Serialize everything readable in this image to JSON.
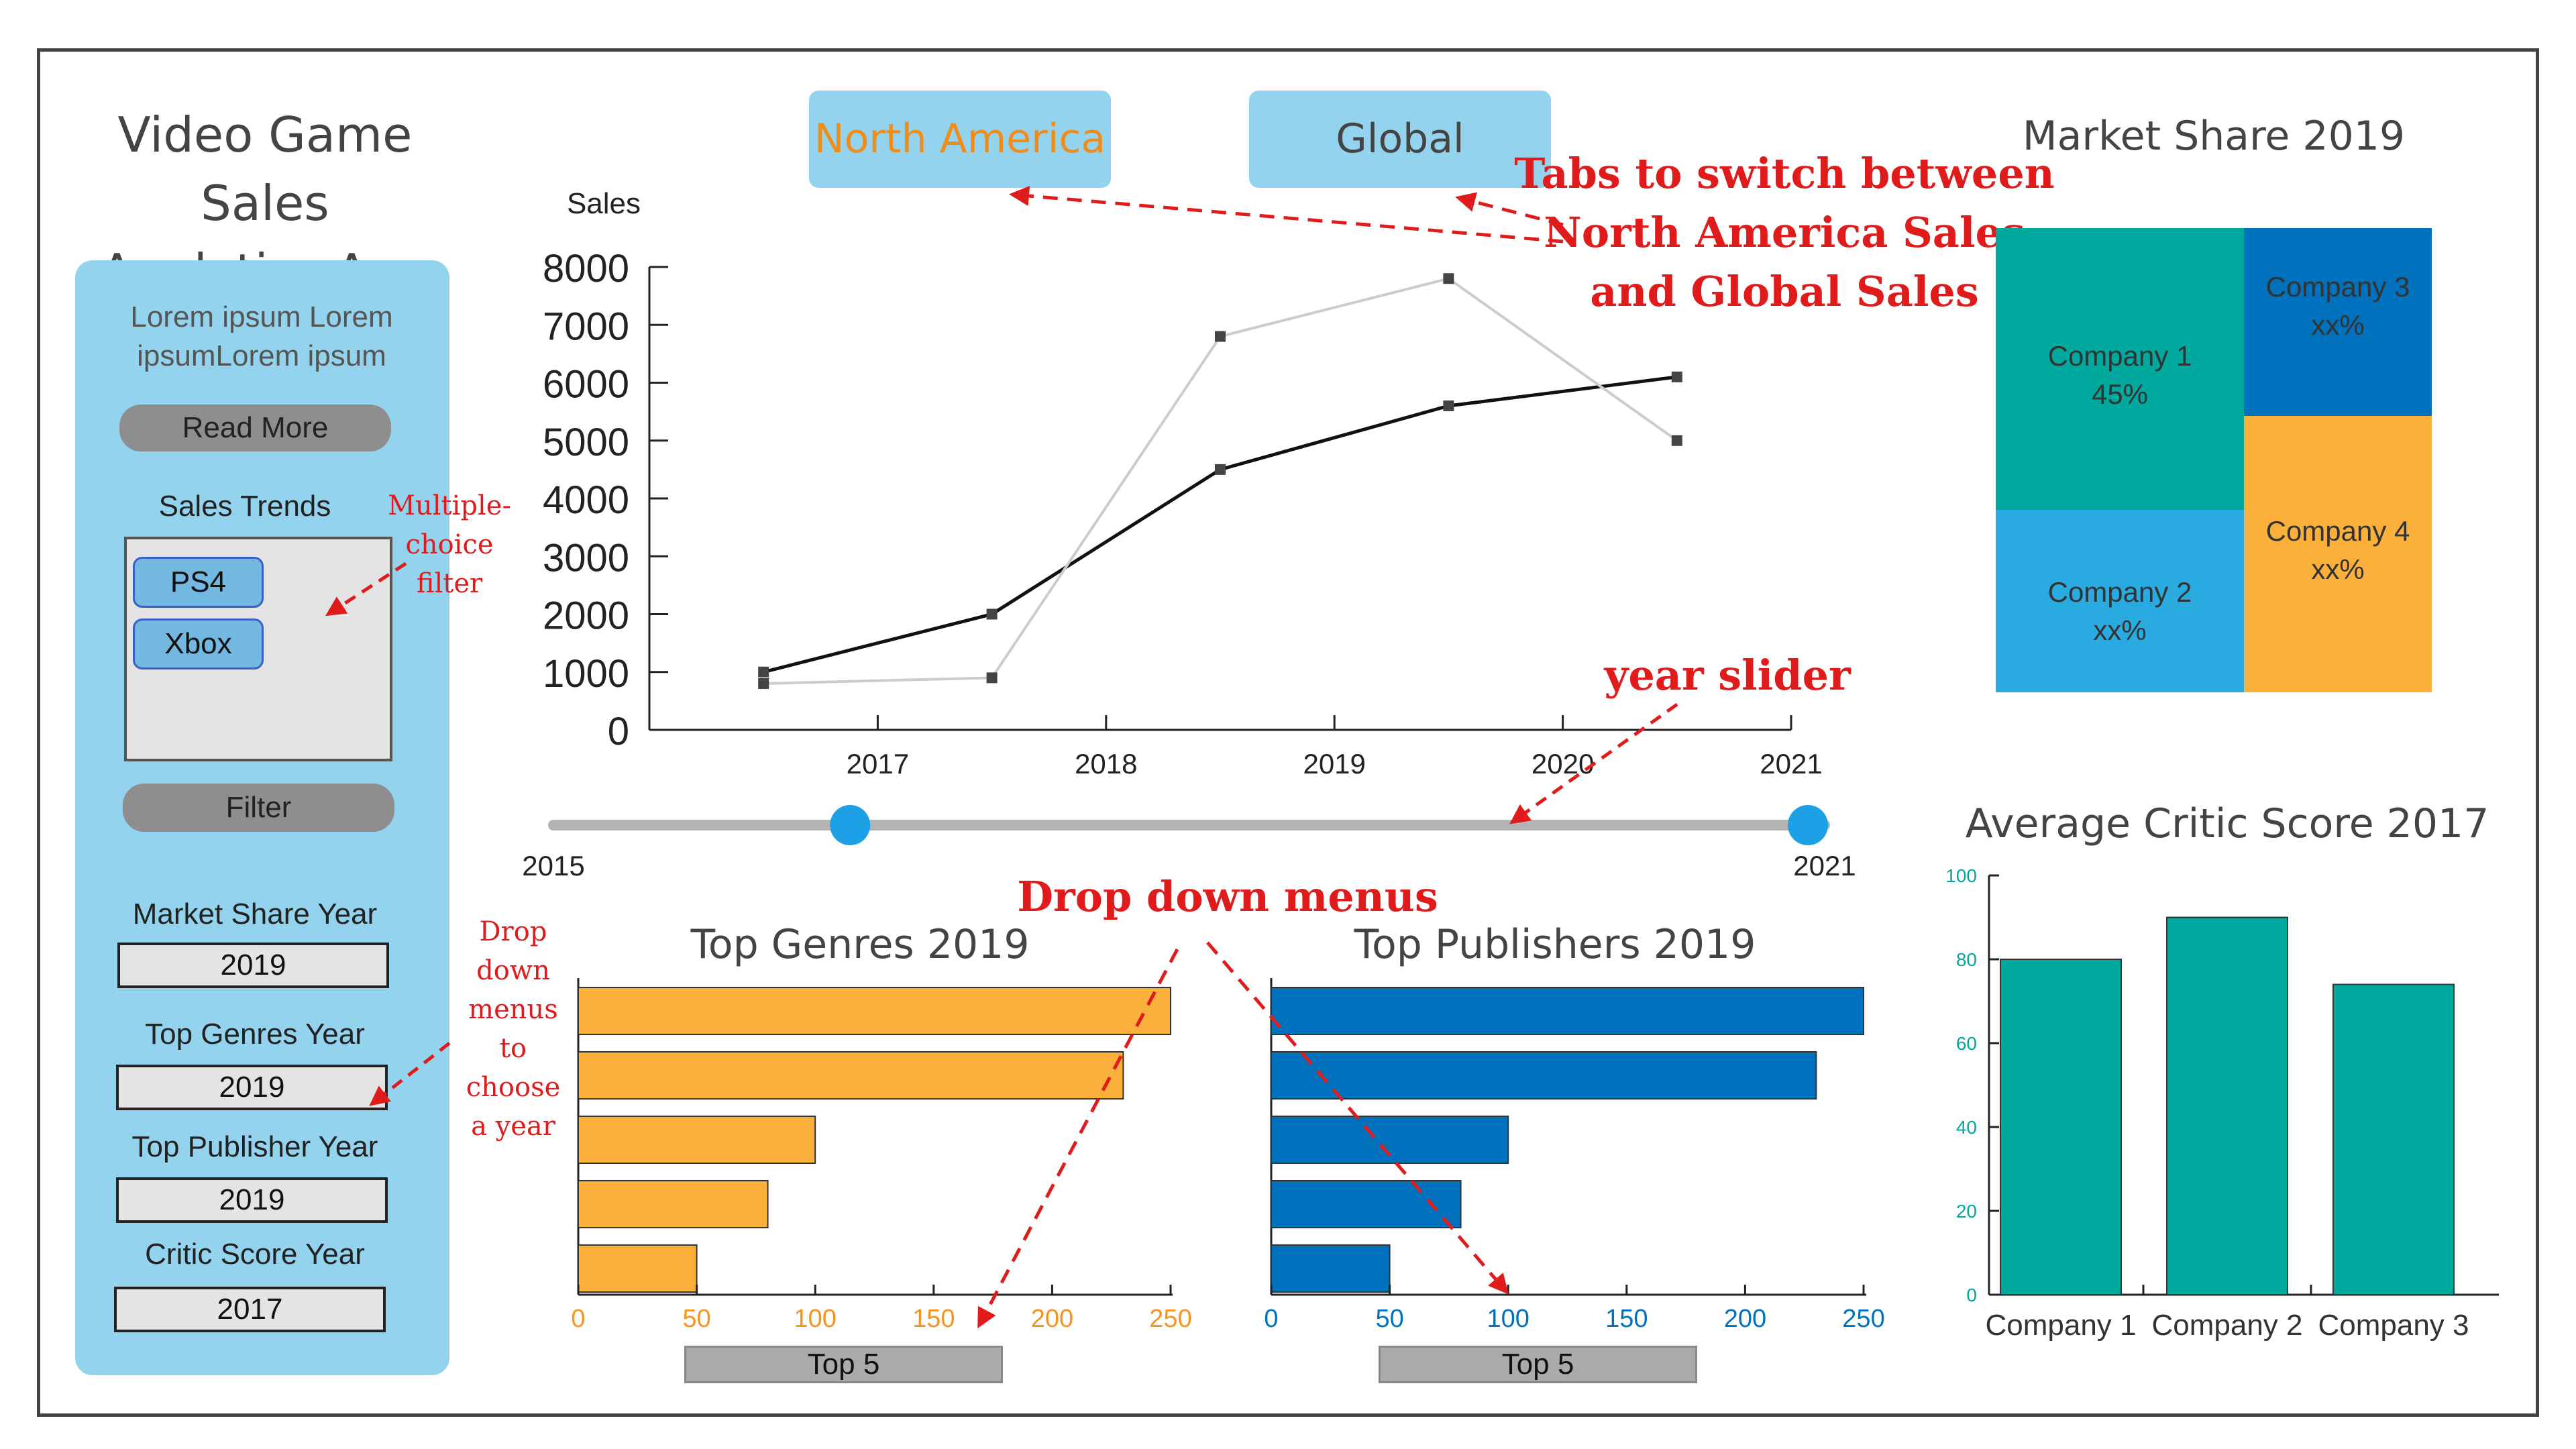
{
  "app": {
    "title_line1": "Video Game Sales",
    "title_line2": "Analytics App"
  },
  "sidebar": {
    "intro_line1": "Lorem ipsum Lorem",
    "intro_line2": "ipsumLorem ipsum",
    "read_more": "Read More",
    "sales_trends_label": "Sales Trends",
    "filter_options": [
      "PS4",
      "Xbox"
    ],
    "filter_button": "Filter",
    "dropdowns": [
      {
        "label": "Market Share Year",
        "value": "2019"
      },
      {
        "label": "Top Genres Year",
        "value": "2019"
      },
      {
        "label": "Top Publisher Year",
        "value": "2019"
      },
      {
        "label": "Critic Score Year",
        "value": "2017"
      }
    ]
  },
  "tabs": [
    {
      "label": "North America",
      "active": true,
      "color": "#f08c1a"
    },
    {
      "label": "Global",
      "active": false,
      "color": "#444444"
    }
  ],
  "annotations": {
    "tabs_line1": "Tabs to switch between",
    "tabs_line2": "North America Sales",
    "tabs_line3": "and Global Sales",
    "filter_line1": "Multiple-",
    "filter_line2": "choice",
    "filter_line3": "filter",
    "slider": "year slider",
    "dropdown_menus": "Drop down menus",
    "sidebar_dd_lines": [
      "Drop",
      "down",
      "menus",
      "to",
      "choose",
      "a year"
    ]
  },
  "slider": {
    "min_label": "2015",
    "max_label": "2021",
    "min": 2015,
    "max": 2021,
    "value_start": 2016.4,
    "value_end": 2021
  },
  "chart_data": [
    {
      "type": "line",
      "title": "",
      "ylabel": "Sales",
      "xlabel": "",
      "x_ticks": [
        "2017",
        "2018",
        "2019",
        "2020",
        "2021"
      ],
      "y_ticks": [
        "0",
        "1000",
        "2000",
        "3000",
        "4000",
        "5000",
        "6000",
        "7000",
        "8000"
      ],
      "xlim": [
        2016,
        2021
      ],
      "ylim": [
        0,
        8000
      ],
      "series": [
        {
          "name": "",
          "color": "#111111",
          "x": [
            2016.5,
            2017.5,
            2018.5,
            2019.5,
            2020.5
          ],
          "y": [
            1000,
            2000,
            4500,
            5600,
            6100
          ]
        },
        {
          "name": "",
          "color": "#cccccc",
          "x": [
            2016.5,
            2017.5,
            2018.5,
            2019.5,
            2020.5
          ],
          "y": [
            800,
            900,
            6800,
            7800,
            5000
          ]
        }
      ]
    },
    {
      "type": "table",
      "title": "Market Share 2019",
      "cells": [
        {
          "name": "Company 1",
          "value": "45%",
          "color": "#00a99d"
        },
        {
          "name": "Company 2",
          "value": "xx%",
          "color": "#29abe2"
        },
        {
          "name": "Company 3",
          "value": "xx%",
          "color": "#0071bc"
        },
        {
          "name": "Company 4",
          "value": "xx%",
          "color": "#fbb03b"
        }
      ]
    },
    {
      "type": "bar",
      "title": "Top Genres 2019",
      "orientation": "horizontal",
      "values": [
        250,
        230,
        100,
        80,
        50
      ],
      "xlim": [
        0,
        250
      ],
      "x_ticks": [
        "0",
        "50",
        "100",
        "150",
        "200",
        "250"
      ],
      "color": "#fbb03b",
      "button": "Top 5"
    },
    {
      "type": "bar",
      "title": "Top Publishers 2019",
      "orientation": "horizontal",
      "values": [
        250,
        230,
        100,
        80,
        50
      ],
      "xlim": [
        0,
        250
      ],
      "x_ticks": [
        "0",
        "50",
        "100",
        "150",
        "200",
        "250"
      ],
      "color": "#0071bc",
      "button": "Top 5"
    },
    {
      "type": "bar",
      "title": "Average Critic Score 2017",
      "categories": [
        "Company 1",
        "Company 2",
        "Company 3"
      ],
      "values": [
        80,
        90,
        74
      ],
      "ylim": [
        0,
        100
      ],
      "y_ticks": [
        "0",
        "20",
        "40",
        "60",
        "80",
        "100"
      ],
      "color": "#00a99d",
      "tick_color": "#00a99d"
    }
  ]
}
